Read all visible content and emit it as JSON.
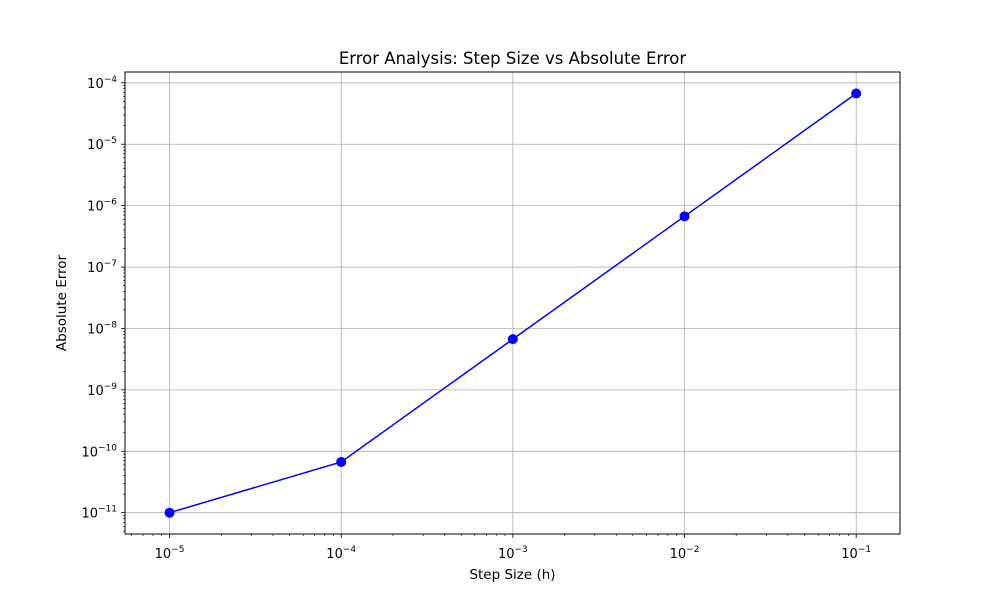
{
  "chart_data": {
    "type": "line",
    "title": "Error Analysis: Step Size vs Absolute Error",
    "xlabel": "Step Size (h)",
    "ylabel": "Absolute Error",
    "xscale": "log",
    "yscale": "log",
    "xlim": [
      5.5e-06,
      0.18
    ],
    "ylim": [
      4.5e-12,
      0.00015
    ],
    "grid": true,
    "x_ticks": [
      {
        "base": "10",
        "exp": "−5",
        "value": 1e-05
      },
      {
        "base": "10",
        "exp": "−4",
        "value": 0.0001
      },
      {
        "base": "10",
        "exp": "−3",
        "value": 0.001
      },
      {
        "base": "10",
        "exp": "−2",
        "value": 0.01
      },
      {
        "base": "10",
        "exp": "−1",
        "value": 0.1
      }
    ],
    "y_ticks": [
      {
        "base": "10",
        "exp": "−11",
        "value": 1e-11
      },
      {
        "base": "10",
        "exp": "−10",
        "value": 1e-10
      },
      {
        "base": "10",
        "exp": "−9",
        "value": 1e-09
      },
      {
        "base": "10",
        "exp": "−8",
        "value": 1e-08
      },
      {
        "base": "10",
        "exp": "−7",
        "value": 1e-07
      },
      {
        "base": "10",
        "exp": "−6",
        "value": 1e-06
      },
      {
        "base": "10",
        "exp": "−5",
        "value": 1e-05
      },
      {
        "base": "10",
        "exp": "−4",
        "value": 0.0001
      }
    ],
    "series": [
      {
        "color": "#0000ff",
        "marker": "circle",
        "x": [
          1e-05,
          0.0001,
          0.001,
          0.01,
          0.1
        ],
        "y": [
          1e-11,
          6.7e-11,
          6.7e-09,
          6.7e-07,
          6.7e-05
        ]
      }
    ]
  }
}
